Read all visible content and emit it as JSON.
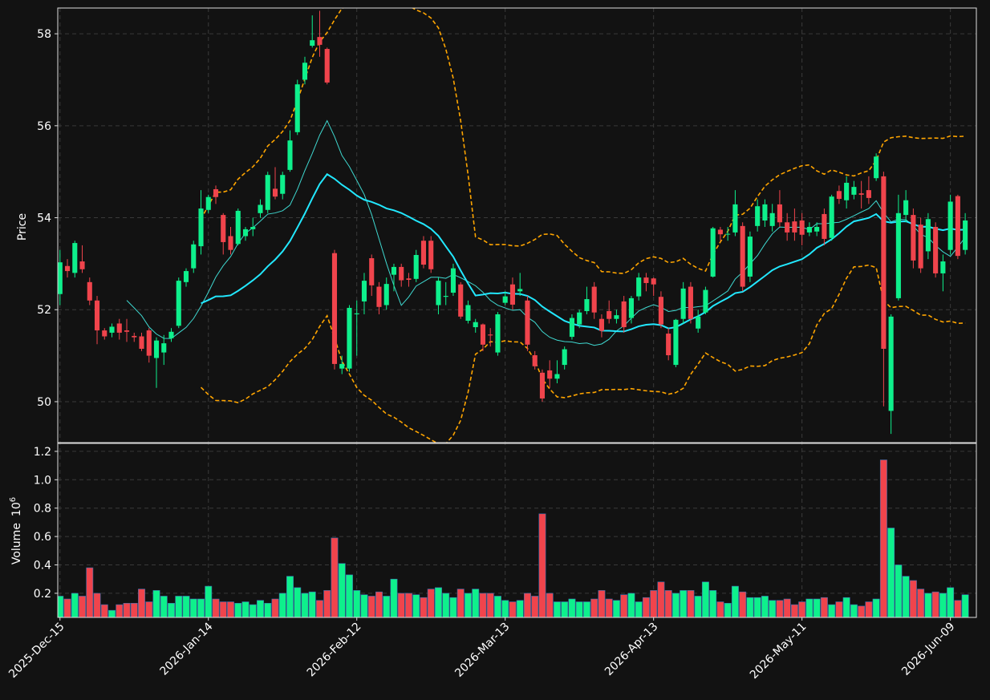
{
  "chart_data": {
    "type": "candlestick",
    "ylabel": "Price",
    "y2label": "Volume",
    "volume_scale": {
      "base": "10",
      "exponent": "6"
    },
    "xlim": [
      -0.3,
      123.5
    ],
    "xticks": [
      {
        "value": 0,
        "label": "2025-Dec-15"
      },
      {
        "value": 20,
        "label": "2026-Jan-14"
      },
      {
        "value": 40,
        "label": "2026-Feb-12"
      },
      {
        "value": 60,
        "label": "2026-Mar-13"
      },
      {
        "value": 80,
        "label": "2026-Apr-13"
      },
      {
        "value": 100,
        "label": "2026-May-11"
      },
      {
        "value": 120,
        "label": "2026-Jun-09"
      }
    ],
    "ylim": [
      49.11,
      58.56
    ],
    "yticks": [
      50,
      52,
      54,
      56,
      58
    ],
    "y2lim": [
      0.03,
      1.256
    ],
    "y2ticks": [
      0.2,
      0.4,
      0.6,
      0.8,
      {
        "value": 1,
        "label": "1.0"
      },
      1.2
    ],
    "grid": true,
    "up_color": "#0ef08c",
    "down_color": "#f0444c",
    "mav": [
      {
        "period": 10,
        "color": "#3fd8d0"
      },
      {
        "period": 20,
        "color": "#22e8ff"
      }
    ],
    "bollinger": {
      "period": 20,
      "std": 2,
      "color": "#ffa500"
    },
    "open": [
      52.34,
      52.95,
      52.8,
      53.05,
      52.6,
      52.2,
      51.55,
      51.5,
      51.7,
      51.55,
      51.43,
      51.42,
      51.55,
      50.95,
      51.07,
      51.38,
      51.65,
      52.6,
      52.9,
      53.38,
      54.17,
      54.62,
      54.06,
      53.6,
      53.43,
      53.6,
      53.75,
      54.1,
      54.17,
      54.63,
      54.52,
      55.04,
      55.86,
      57.0,
      57.74,
      57.93,
      57.67,
      53.23,
      50.72,
      50.72,
      51.9,
      52.18,
      53.12,
      52.5,
      52.1,
      52.76,
      52.93,
      52.68,
      52.67,
      53.5,
      53.5,
      52.1,
      52.28,
      52.37,
      52.55,
      51.76,
      51.62,
      51.68,
      51.46,
      51.07,
      52.15,
      52.55,
      52.4,
      52.2,
      51.01,
      50.63,
      50.68,
      50.5,
      50.8,
      51.41,
      51.68,
      51.97,
      52.5,
      51.8,
      51.97,
      51.8,
      52.18,
      51.82,
      52.29,
      52.7,
      52.68,
      52.28,
      51.48,
      50.8,
      51.8,
      52.5,
      51.59,
      51.94,
      52.72,
      53.74,
      53.64,
      53.68,
      53.82,
      52.72,
      53.82,
      53.94,
      53.82,
      54.29,
      53.9,
      53.92,
      53.94,
      53.68,
      53.7,
      54.08,
      53.56,
      54.58,
      54.38,
      54.5,
      54.53,
      54.6,
      54.86,
      54.9,
      49.8,
      52.25,
      54.06,
      54.06,
      53.85,
      53.27,
      53.8,
      52.79,
      53.3,
      54.47,
      53.3
    ],
    "high": [
      53.3,
      53.1,
      53.5,
      53.4,
      52.7,
      52.3,
      51.6,
      51.7,
      51.8,
      51.8,
      51.5,
      51.5,
      51.6,
      51.4,
      51.45,
      51.6,
      52.7,
      52.9,
      53.5,
      54.6,
      54.5,
      54.7,
      54.1,
      53.8,
      54.2,
      53.8,
      54.0,
      54.4,
      55.0,
      55.1,
      55.0,
      55.9,
      57.0,
      57.5,
      58.4,
      58.5,
      57.7,
      53.3,
      51.0,
      52.1,
      52.2,
      52.8,
      53.2,
      52.6,
      52.7,
      53.0,
      53.0,
      52.8,
      53.3,
      53.6,
      53.6,
      52.7,
      52.6,
      53.0,
      52.6,
      52.2,
      51.8,
      51.7,
      51.6,
      51.95,
      52.4,
      52.7,
      52.8,
      52.3,
      51.1,
      50.7,
      50.9,
      50.9,
      51.2,
      51.9,
      52.0,
      52.5,
      52.6,
      51.9,
      52.2,
      52.0,
      52.3,
      52.3,
      52.8,
      52.8,
      52.7,
      52.4,
      51.6,
      51.8,
      52.6,
      52.6,
      52.0,
      52.5,
      53.8,
      53.8,
      53.8,
      54.6,
      53.9,
      53.7,
      54.4,
      54.4,
      54.3,
      54.6,
      54.1,
      54.2,
      54.1,
      53.9,
      53.9,
      54.2,
      54.5,
      54.7,
      54.9,
      54.8,
      54.8,
      54.9,
      55.4,
      55.0,
      51.9,
      54.5,
      54.6,
      54.2,
      54.0,
      54.1,
      53.9,
      53.2,
      54.5,
      54.5,
      54.1
    ],
    "low": [
      52.1,
      52.7,
      52.7,
      52.8,
      52.1,
      51.25,
      51.35,
      51.4,
      51.35,
      51.3,
      51.3,
      51.1,
      50.85,
      50.3,
      50.8,
      51.3,
      51.6,
      52.5,
      52.8,
      53.2,
      54.1,
      54.3,
      53.2,
      53.2,
      53.4,
      53.5,
      53.6,
      54.0,
      54.1,
      54.4,
      54.4,
      55.0,
      55.8,
      56.9,
      57.7,
      57.5,
      56.9,
      50.7,
      50.6,
      50.65,
      51.0,
      51.9,
      52.3,
      51.9,
      52.0,
      52.4,
      52.5,
      52.5,
      52.6,
      52.9,
      52.8,
      51.9,
      52.1,
      52.3,
      51.8,
      51.7,
      51.5,
      51.1,
      51.2,
      51.0,
      52.1,
      52.0,
      52.3,
      51.1,
      50.7,
      50.0,
      50.3,
      50.4,
      50.7,
      51.35,
      51.6,
      51.9,
      51.8,
      51.4,
      51.7,
      51.7,
      51.5,
      51.7,
      52.2,
      52.4,
      52.3,
      51.6,
      50.9,
      50.75,
      51.7,
      51.7,
      51.5,
      51.9,
      52.7,
      53.5,
      53.5,
      53.6,
      52.4,
      52.6,
      53.7,
      53.8,
      53.7,
      53.8,
      53.5,
      53.5,
      53.4,
      53.6,
      53.6,
      53.4,
      53.5,
      54.3,
      54.2,
      54.4,
      54.2,
      54.3,
      54.8,
      49.9,
      49.3,
      52.2,
      53.9,
      52.9,
      52.8,
      53.1,
      52.7,
      52.4,
      53.2,
      53.1,
      53.2
    ],
    "close": [
      53.03,
      52.84,
      53.45,
      52.88,
      52.2,
      51.55,
      51.42,
      51.63,
      51.5,
      51.52,
      51.4,
      51.15,
      51.0,
      51.33,
      51.27,
      51.52,
      52.63,
      52.84,
      53.42,
      54.2,
      54.45,
      54.45,
      53.47,
      53.3,
      54.15,
      53.75,
      53.8,
      54.28,
      54.93,
      54.46,
      54.93,
      55.68,
      56.9,
      57.37,
      57.86,
      57.76,
      56.94,
      50.82,
      50.82,
      52.04,
      51.92,
      52.63,
      52.53,
      52.06,
      52.56,
      52.93,
      52.64,
      52.65,
      53.19,
      52.98,
      52.88,
      52.63,
      52.3,
      52.9,
      51.85,
      52.1,
      51.73,
      51.24,
      51.44,
      51.9,
      52.29,
      52.11,
      52.45,
      51.24,
      50.77,
      50.07,
      50.5,
      50.6,
      51.14,
      51.82,
      51.94,
      52.23,
      51.94,
      51.54,
      51.8,
      51.88,
      51.62,
      52.25,
      52.7,
      52.58,
      52.55,
      51.68,
      51.01,
      51.78,
      52.46,
      51.8,
      51.85,
      52.43,
      53.77,
      53.64,
      53.65,
      54.29,
      52.5,
      53.59,
      54.25,
      54.29,
      54.1,
      53.9,
      53.68,
      53.68,
      53.63,
      53.8,
      53.8,
      53.54,
      54.46,
      54.41,
      54.76,
      54.67,
      54.5,
      54.43,
      55.33,
      51.15,
      51.85,
      54.1,
      54.38,
      53.07,
      52.9,
      53.97,
      52.79,
      53.05,
      54.35,
      53.17,
      53.94
    ],
    "volume": [
      0.18,
      0.16,
      0.2,
      0.18,
      0.38,
      0.2,
      0.12,
      0.08,
      0.12,
      0.13,
      0.13,
      0.23,
      0.14,
      0.22,
      0.18,
      0.13,
      0.18,
      0.18,
      0.16,
      0.16,
      0.25,
      0.16,
      0.14,
      0.14,
      0.13,
      0.14,
      0.12,
      0.15,
      0.13,
      0.16,
      0.2,
      0.32,
      0.24,
      0.2,
      0.21,
      0.15,
      0.22,
      0.59,
      0.41,
      0.33,
      0.22,
      0.19,
      0.18,
      0.21,
      0.18,
      0.3,
      0.2,
      0.2,
      0.19,
      0.17,
      0.23,
      0.24,
      0.2,
      0.17,
      0.23,
      0.2,
      0.23,
      0.2,
      0.2,
      0.18,
      0.15,
      0.14,
      0.15,
      0.2,
      0.18,
      0.76,
      0.2,
      0.14,
      0.14,
      0.16,
      0.14,
      0.14,
      0.16,
      0.22,
      0.16,
      0.15,
      0.19,
      0.2,
      0.14,
      0.17,
      0.22,
      0.28,
      0.22,
      0.2,
      0.22,
      0.22,
      0.18,
      0.28,
      0.22,
      0.14,
      0.13,
      0.25,
      0.21,
      0.17,
      0.17,
      0.18,
      0.15,
      0.15,
      0.16,
      0.12,
      0.14,
      0.16,
      0.16,
      0.17,
      0.12,
      0.14,
      0.17,
      0.12,
      0.11,
      0.14,
      0.16,
      1.14,
      0.66,
      0.4,
      0.32,
      0.29,
      0.23,
      0.2,
      0.21,
      0.2,
      0.24,
      0.15,
      0.19
    ]
  }
}
